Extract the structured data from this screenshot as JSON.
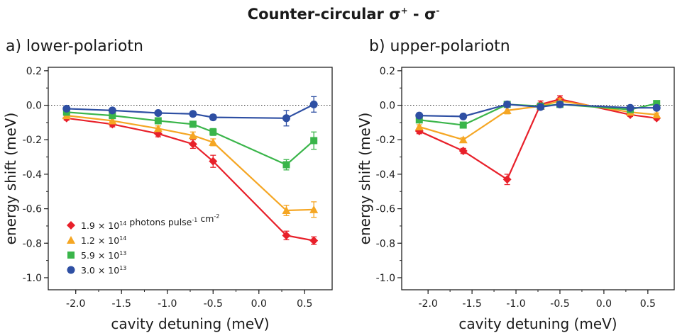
{
  "figure": {
    "title_main": "Counter-circular σ",
    "title_sup1": "+",
    "title_mid": " - σ",
    "title_sup2": "-"
  },
  "chart_data": [
    {
      "type": "line",
      "title": "a) lower-polariotn",
      "xlabel": "cavity detuning (meV)",
      "ylabel": "energy shift (meV)",
      "xlim": [
        -2.3,
        0.8
      ],
      "ylim": [
        -1.07,
        0.22
      ],
      "xticks": [
        -2.0,
        -1.5,
        -1.0,
        -0.5,
        0.0,
        0.5
      ],
      "xtick_labels": [
        "-2.0",
        "-1.5",
        "-1.0",
        "-0.5",
        "0.0",
        "0.5"
      ],
      "yticks": [
        0.2,
        0.0,
        -0.2,
        -0.4,
        -0.6,
        -0.8,
        -1.0
      ],
      "ytick_labels": [
        "0.2",
        "0.0",
        "-0.2",
        "-0.4",
        "-0.6",
        "-0.8",
        "-1.0"
      ],
      "zero_line": "dotted",
      "legend_position": "lower-left",
      "x": [
        -2.1,
        -1.6,
        -1.1,
        -0.72,
        -0.5,
        0.3,
        0.6
      ],
      "series": [
        {
          "name": "1.9 × 10",
          "name_sup": "14",
          "name_rest": " photons pulse",
          "name_sup2": "-1",
          "name_rest2": " cm",
          "name_sup3": "-2",
          "color": "#e8202a",
          "marker": "diamond",
          "values": [
            -0.075,
            -0.11,
            -0.165,
            -0.225,
            -0.325,
            -0.755,
            -0.785
          ],
          "errors": [
            0.012,
            0.015,
            0.018,
            0.025,
            0.035,
            0.025,
            0.022
          ]
        },
        {
          "name": "1.2 × 10",
          "name_sup": "14",
          "color": "#f5a623",
          "marker": "triangle",
          "values": [
            -0.06,
            -0.09,
            -0.135,
            -0.175,
            -0.215,
            -0.61,
            -0.605
          ],
          "errors": [
            0.01,
            0.012,
            0.015,
            0.02,
            0.02,
            0.03,
            0.045
          ]
        },
        {
          "name": "5.9 × 10",
          "name_sup": "13",
          "color": "#3ab54a",
          "marker": "square",
          "values": [
            -0.04,
            -0.06,
            -0.09,
            -0.11,
            -0.155,
            -0.345,
            -0.205
          ],
          "errors": [
            0.01,
            0.01,
            0.012,
            0.015,
            0.02,
            0.03,
            0.05
          ]
        },
        {
          "name": "3.0 × 10",
          "name_sup": "13",
          "color": "#2e4fa3",
          "marker": "circle",
          "values": [
            -0.02,
            -0.03,
            -0.045,
            -0.05,
            -0.07,
            -0.075,
            0.005
          ],
          "errors": [
            0.008,
            0.01,
            0.01,
            0.012,
            0.015,
            0.045,
            0.045
          ]
        }
      ]
    },
    {
      "type": "line",
      "title": "b) upper-polariotn",
      "xlabel": "cavity detuning (meV)",
      "ylabel": "energy shift (meV)",
      "xlim": [
        -2.3,
        0.8
      ],
      "ylim": [
        -1.07,
        0.22
      ],
      "xticks": [
        -2.0,
        -1.5,
        -1.0,
        -0.5,
        0.0,
        0.5
      ],
      "xtick_labels": [
        "-2.0",
        "-1.5",
        "-1.0",
        "-0.5",
        "0.0",
        "0.5"
      ],
      "yticks": [
        0.2,
        0.0,
        -0.2,
        -0.4,
        -0.6,
        -0.8,
        -1.0
      ],
      "ytick_labels": [
        "0.2",
        "0.0",
        "-0.2",
        "-0.4",
        "-0.6",
        "-0.8",
        "-1.0"
      ],
      "zero_line": "dotted",
      "x": [
        -2.1,
        -1.6,
        -1.1,
        -0.72,
        -0.5,
        0.3,
        0.6
      ],
      "series": [
        {
          "color": "#e8202a",
          "marker": "diamond",
          "values": [
            -0.15,
            -0.265,
            -0.43,
            0.005,
            0.035,
            -0.055,
            -0.075
          ],
          "errors": [
            0.015,
            0.015,
            0.03,
            0.02,
            0.02,
            0.01,
            0.01
          ]
        },
        {
          "color": "#f5a623",
          "marker": "triangle",
          "values": [
            -0.125,
            -0.2,
            -0.03,
            -0.005,
            0.025,
            -0.04,
            -0.055
          ],
          "errors": [
            0.012,
            0.012,
            0.02,
            0.01,
            0.015,
            0.01,
            0.01
          ]
        },
        {
          "color": "#3ab54a",
          "marker": "square",
          "values": [
            -0.085,
            -0.115,
            0.005,
            -0.005,
            0.005,
            -0.025,
            0.01
          ],
          "errors": [
            0.01,
            0.01,
            0.01,
            0.01,
            0.01,
            0.01,
            0.01
          ]
        },
        {
          "color": "#2e4fa3",
          "marker": "circle",
          "values": [
            -0.06,
            -0.065,
            0.005,
            -0.01,
            0.005,
            -0.015,
            -0.015
          ],
          "errors": [
            0.008,
            0.008,
            0.008,
            0.008,
            0.008,
            0.008,
            0.008
          ]
        }
      ]
    }
  ]
}
